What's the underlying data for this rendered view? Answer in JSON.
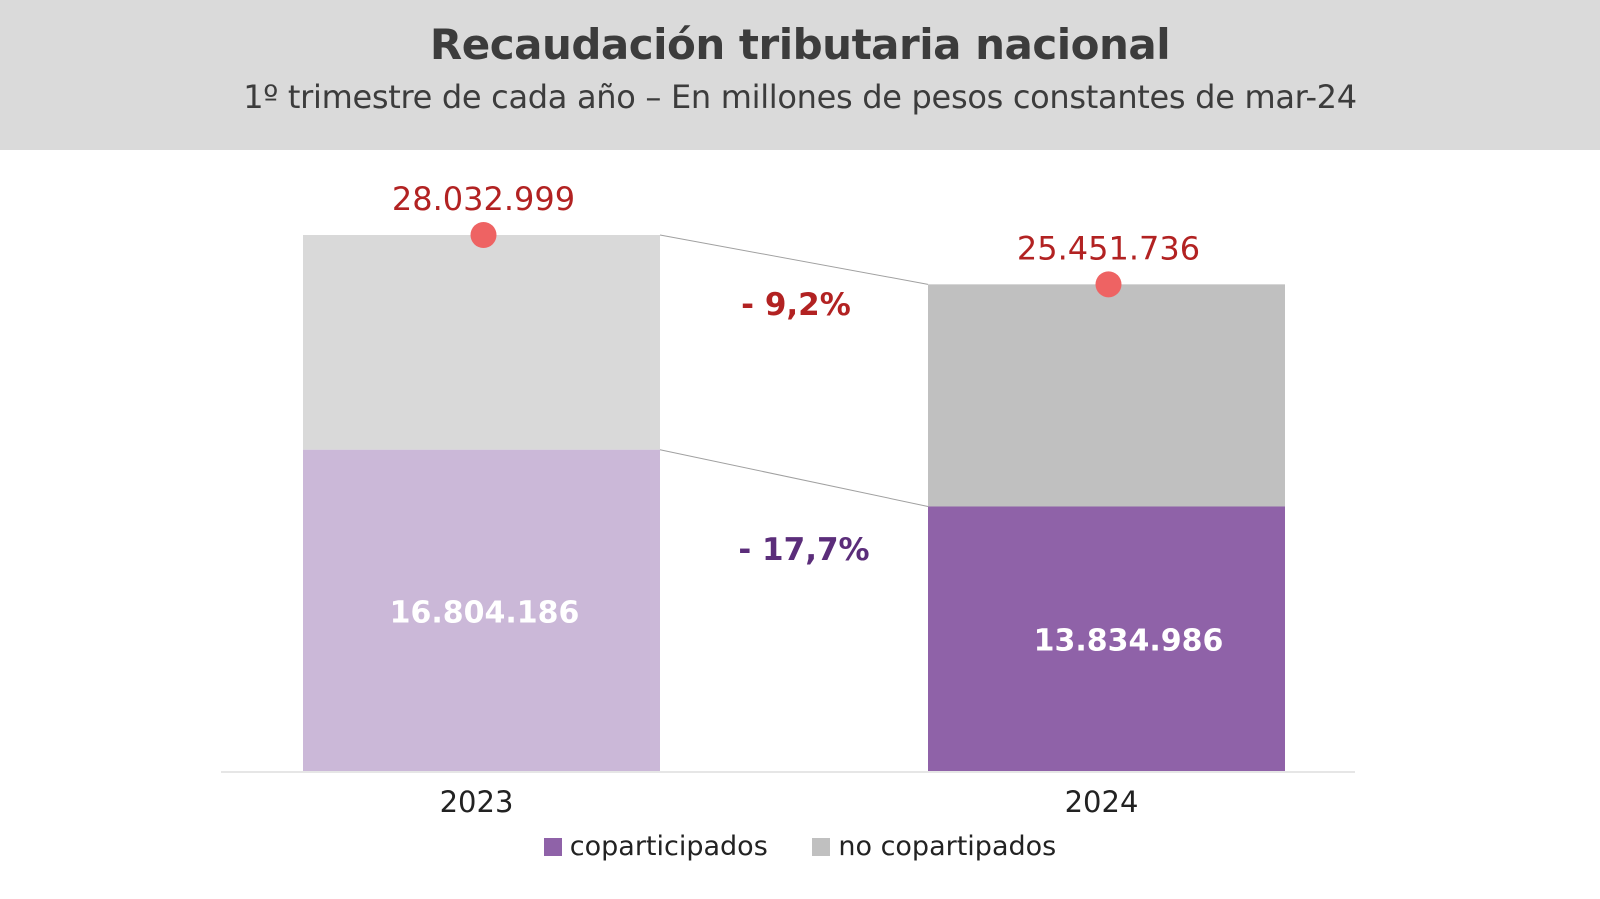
{
  "header": {
    "title": "Recaudación tributaria nacional",
    "subtitle": "1º trimestre de cada año – En millones de pesos constantes de mar-24"
  },
  "chart_data": {
    "type": "bar",
    "stacked": true,
    "categories": [
      "2023",
      "2024"
    ],
    "series": [
      {
        "name": "coparticipados",
        "values": [
          16804186,
          13834986
        ],
        "colors": [
          "#cbb8d8",
          "#8f62a8"
        ],
        "label_color": "#ffffff"
      },
      {
        "name": "no copartipados",
        "values": [
          11228813,
          11616750
        ],
        "colors": [
          "#d9d9d9",
          "#c0c0c0"
        ]
      }
    ],
    "totals": {
      "values": [
        28032999,
        25451736
      ],
      "labels": [
        "28.032.999",
        "25.451.736"
      ],
      "marker_color": "#ee6363",
      "label_color": "#b22222"
    },
    "segment_labels": [
      "16.804.186",
      "13.834.986"
    ],
    "annotations": [
      {
        "text": "- 9,2%",
        "refers_to": "total",
        "color": "#b22222"
      },
      {
        "text": "- 17,7%",
        "refers_to": "coparticipados",
        "color": "#5b2d7a"
      }
    ],
    "legend": {
      "position": "bottom",
      "entries": [
        {
          "label": "coparticipados",
          "color": "#8f62a8"
        },
        {
          "label": "no copartipados",
          "color": "#c0c0c0"
        }
      ]
    },
    "ylim": [
      0,
      28032999
    ],
    "grid": false,
    "xlabel": "",
    "ylabel": ""
  }
}
